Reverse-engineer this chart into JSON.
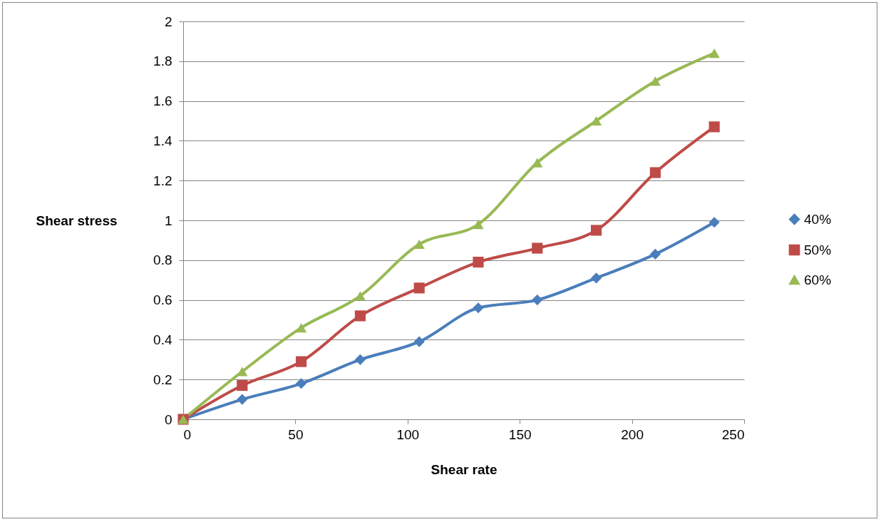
{
  "chart_data": {
    "type": "line",
    "xlabel": "Shear rate",
    "ylabel": "Shear stress",
    "x": [
      0,
      26.3,
      52.6,
      78.9,
      105.2,
      131.5,
      157.8,
      184.1,
      210.4,
      236.7
    ],
    "series": [
      {
        "name": "40%",
        "color": "#4a7ebb",
        "marker": "diamond",
        "values": [
          0,
          0.1,
          0.18,
          0.3,
          0.39,
          0.56,
          0.6,
          0.71,
          0.83,
          0.99
        ]
      },
      {
        "name": "50%",
        "color": "#be4b48",
        "marker": "square",
        "values": [
          0,
          0.17,
          0.29,
          0.52,
          0.66,
          0.79,
          0.86,
          0.95,
          1.24,
          1.47
        ]
      },
      {
        "name": "60%",
        "color": "#98b954",
        "marker": "triangle",
        "values": [
          0,
          0.24,
          0.46,
          0.62,
          0.88,
          0.98,
          1.29,
          1.5,
          1.7,
          1.84
        ]
      }
    ],
    "xlim": [
      0,
      250
    ],
    "xticks": [
      0,
      50,
      100,
      150,
      200,
      250
    ],
    "ylim": [
      0,
      2
    ],
    "yticks": [
      0,
      0.2,
      0.4,
      0.6,
      0.8,
      1,
      1.2,
      1.4,
      1.6,
      1.8,
      2
    ],
    "grid": "y",
    "legend": "right"
  }
}
